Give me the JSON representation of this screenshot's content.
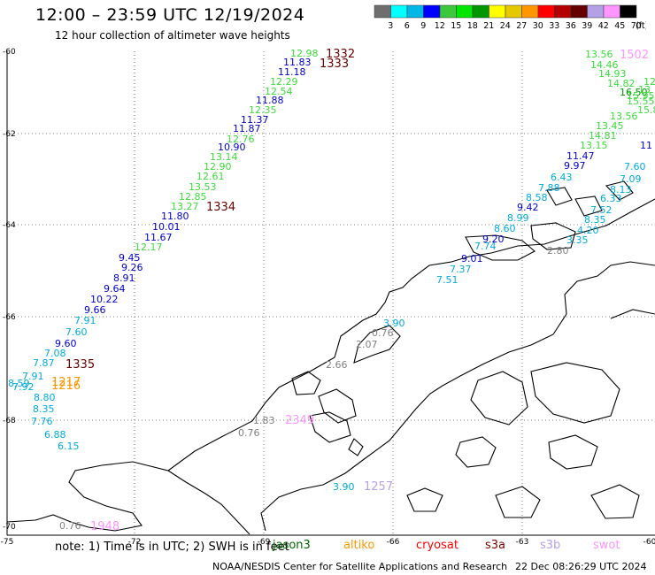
{
  "header": {
    "title": "12:00 – 23:59 UTC 12/19/2024",
    "subtitle": "12 hour collection of altimeter wave heights"
  },
  "colorbar": {
    "labels": [
      "3",
      "6",
      "9",
      "12",
      "15",
      "18",
      "21",
      "24",
      "27",
      "30",
      "33",
      "36",
      "39",
      "42",
      "45",
      "70"
    ],
    "unit": "(ft)",
    "colors": [
      "#6e6e6e",
      "#00ffff",
      "#00b7e6",
      "#0000ff",
      "#3cc83c",
      "#00e600",
      "#009600",
      "#ffff00",
      "#e6c800",
      "#ff9600",
      "#ff0000",
      "#b40000",
      "#640000",
      "#b4a0e6",
      "#ff96ff",
      "#000000"
    ]
  },
  "map": {
    "lat_labels": [
      "-60",
      "-62",
      "-64",
      "-66",
      "-68",
      "-70"
    ],
    "lon_labels": [
      "-75",
      "-72",
      "-69",
      "-66",
      "-63",
      "-60"
    ]
  },
  "labels": [
    {
      "t": "12.98",
      "c": "#3cdc3c"
    },
    {
      "t": "1332",
      "c": "#640000"
    },
    {
      "t": "11.83",
      "c": "#0000cc"
    },
    {
      "t": "1333",
      "c": "#640000"
    },
    {
      "t": "11.18",
      "c": "#0000cc"
    },
    {
      "t": "12.29",
      "c": "#3cdc3c"
    },
    {
      "t": "12.54",
      "c": "#3cdc3c"
    },
    {
      "t": "11.88",
      "c": "#0000cc"
    },
    {
      "t": "12.35",
      "c": "#3cdc3c"
    },
    {
      "t": "11.37",
      "c": "#0000cc"
    },
    {
      "t": "11.87",
      "c": "#0000cc"
    },
    {
      "t": "12.76",
      "c": "#3cdc3c"
    },
    {
      "t": "10.90",
      "c": "#0000cc"
    },
    {
      "t": "13.14",
      "c": "#3cdc3c"
    },
    {
      "t": "12.90",
      "c": "#3cdc3c"
    },
    {
      "t": "12.61",
      "c": "#3cdc3c"
    },
    {
      "t": "13.53",
      "c": "#3cdc3c"
    },
    {
      "t": "12.85",
      "c": "#3cdc3c"
    },
    {
      "t": "13.27",
      "c": "#3cdc3c"
    },
    {
      "t": "1334",
      "c": "#640000"
    },
    {
      "t": "11.80",
      "c": "#0000cc"
    },
    {
      "t": "10.01",
      "c": "#0000cc"
    },
    {
      "t": "11.67",
      "c": "#0000cc"
    },
    {
      "t": "12.17",
      "c": "#3cdc3c"
    },
    {
      "t": "9.45",
      "c": "#0000cc"
    },
    {
      "t": "9.26",
      "c": "#0000cc"
    },
    {
      "t": "8.91",
      "c": "#0000cc"
    },
    {
      "t": "9.64",
      "c": "#0000cc"
    },
    {
      "t": "10.22",
      "c": "#0000cc"
    },
    {
      "t": "9.66",
      "c": "#0000cc"
    },
    {
      "t": "7.91",
      "c": "#00aadd"
    },
    {
      "t": "7.60",
      "c": "#00aadd"
    },
    {
      "t": "9.60",
      "c": "#0000cc"
    },
    {
      "t": "7.08",
      "c": "#00aadd"
    },
    {
      "t": "7.87",
      "c": "#00aadd"
    },
    {
      "t": "1335",
      "c": "#640000"
    },
    {
      "t": "7.91",
      "c": "#00aadd"
    },
    {
      "t": "8.59",
      "c": "#00aadd"
    },
    {
      "t": "7.92",
      "c": "#00aadd"
    },
    {
      "t": "1217",
      "c": "#ff9600"
    },
    {
      "t": "1216",
      "c": "#ff9600"
    },
    {
      "t": "8.80",
      "c": "#00aadd"
    },
    {
      "t": "8.35",
      "c": "#00aadd"
    },
    {
      "t": "7.76",
      "c": "#00aadd"
    },
    {
      "t": "6.88",
      "c": "#00aadd"
    },
    {
      "t": "6.15",
      "c": "#00aadd"
    },
    {
      "t": "0.76",
      "c": "#808080"
    },
    {
      "t": "1948",
      "c": "#ff96ff"
    },
    {
      "t": "13.56",
      "c": "#3cdc3c"
    },
    {
      "t": "1502",
      "c": "#ff96ff"
    },
    {
      "t": "14.46",
      "c": "#3cdc3c"
    },
    {
      "t": "14.93",
      "c": "#3cdc3c"
    },
    {
      "t": "14.82",
      "c": "#3cdc3c"
    },
    {
      "t": "12",
      "c": "#3cdc3c"
    },
    {
      "t": "16.50",
      "c": "#009600"
    },
    {
      "t": "15.95",
      "c": "#3cdc3c"
    },
    {
      "t": "15.55",
      "c": "#3cdc3c"
    },
    {
      "t": "13",
      "c": "#3cdc3c"
    },
    {
      "t": "15.8",
      "c": "#3cdc3c"
    },
    {
      "t": "13.56",
      "c": "#3cdc3c"
    },
    {
      "t": "13.45",
      "c": "#3cdc3c"
    },
    {
      "t": "14.81",
      "c": "#3cdc3c"
    },
    {
      "t": "13.15",
      "c": "#3cdc3c"
    },
    {
      "t": "11",
      "c": "#0000cc"
    },
    {
      "t": "11.47",
      "c": "#0000cc"
    },
    {
      "t": "9.97",
      "c": "#0000cc"
    },
    {
      "t": "7.60",
      "c": "#00aadd"
    },
    {
      "t": "7.09",
      "c": "#00aadd"
    },
    {
      "t": "6.43",
      "c": "#00aadd"
    },
    {
      "t": "7.88",
      "c": "#00aadd"
    },
    {
      "t": "8.58",
      "c": "#00aadd"
    },
    {
      "t": "8.13",
      "c": "#00aadd"
    },
    {
      "t": "6.33",
      "c": "#00aadd"
    },
    {
      "t": "9.42",
      "c": "#0000cc"
    },
    {
      "t": "7.52",
      "c": "#00aadd"
    },
    {
      "t": "8.35",
      "c": "#00aadd"
    },
    {
      "t": "8.99",
      "c": "#00aadd"
    },
    {
      "t": "8.60",
      "c": "#00aadd"
    },
    {
      "t": "4.20",
      "c": "#00aadd"
    },
    {
      "t": "9.20",
      "c": "#0000cc"
    },
    {
      "t": "3.35",
      "c": "#00aadd"
    },
    {
      "t": "7.74",
      "c": "#00aadd"
    },
    {
      "t": "2.80",
      "c": "#808080"
    },
    {
      "t": "9.01",
      "c": "#0000cc"
    },
    {
      "t": "7.37",
      "c": "#00aadd"
    },
    {
      "t": "7.51",
      "c": "#00aadd"
    },
    {
      "t": "3.90",
      "c": "#00aadd"
    },
    {
      "t": "0.76",
      "c": "#808080"
    },
    {
      "t": "2.07",
      "c": "#808080"
    },
    {
      "t": "1.83",
      "c": "#808080"
    },
    {
      "t": "2349",
      "c": "#ff96ff"
    },
    {
      "t": "0.76",
      "c": "#808080"
    },
    {
      "t": "3.90",
      "c": "#00aadd"
    },
    {
      "t": "1257",
      "c": "#b4a0e6"
    },
    {
      "t": "2.66",
      "c": "#808080"
    }
  ],
  "note": {
    "prefix": "note:  1) Time is in UTC;  2) SWH is in feet",
    "satellites": [
      {
        "name": "jason3",
        "c": "#006400"
      },
      {
        "name": "altiko",
        "c": "#ff9600"
      },
      {
        "name": "cryosat",
        "c": "#ff0000"
      },
      {
        "name": "s3a",
        "c": "#800000"
      },
      {
        "name": "s3b",
        "c": "#b4a0e6"
      },
      {
        "name": "swot",
        "c": "#ff96ff"
      }
    ]
  },
  "footer": {
    "credit": "NOAA/NESDIS Center for Satellite Applications and Research",
    "timestamp": "22 Dec 08:26:29 UTC 2024"
  }
}
